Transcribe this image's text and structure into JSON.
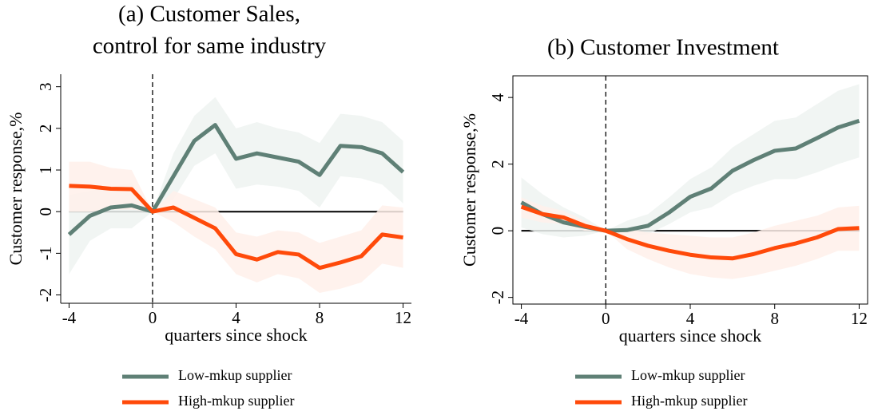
{
  "chart_data": [
    {
      "type": "line",
      "title": [
        "(a) Customer Sales,",
        "control for same industry"
      ],
      "x_label": "quarters since shock",
      "y_label": "Customer response,%",
      "x": [
        -4,
        -3,
        -2,
        -1,
        0,
        1,
        2,
        3,
        4,
        5,
        6,
        7,
        8,
        9,
        10,
        11,
        12
      ],
      "xlim": [
        -4.4,
        12.4
      ],
      "xticks": [
        -4,
        0,
        4,
        8,
        12
      ],
      "ylim": [
        -2.2,
        3.3
      ],
      "yticks": [
        -2,
        -1,
        0,
        1,
        2,
        3
      ],
      "hline": 0,
      "vline": 0,
      "frame": false,
      "series": [
        {
          "name": "Low-mkup supplier",
          "color": "#5f8076",
          "band_color": "#eef3f1",
          "values": [
            -0.55,
            -0.1,
            0.1,
            0.15,
            0,
            0.85,
            1.7,
            2.08,
            1.27,
            1.4,
            1.3,
            1.2,
            0.88,
            1.58,
            1.55,
            1.4,
            0.95
          ],
          "lower": [
            -1.5,
            -0.7,
            -0.4,
            -0.4,
            0,
            0.3,
            1.1,
            1.4,
            0.55,
            0.65,
            0.6,
            0.5,
            0.1,
            0.85,
            0.8,
            0.65,
            0.2
          ],
          "upper": [
            0.4,
            0.5,
            0.6,
            0.7,
            0,
            1.4,
            2.3,
            2.75,
            2.0,
            2.15,
            2.0,
            1.9,
            1.65,
            2.35,
            2.3,
            2.15,
            1.7
          ]
        },
        {
          "name": "High-mkup supplier",
          "color": "#ff4a0a",
          "band_color": "#fff0ea",
          "values": [
            0.62,
            0.6,
            0.55,
            0.54,
            0,
            0.1,
            -0.15,
            -0.4,
            -1.02,
            -1.15,
            -0.97,
            -1.03,
            -1.35,
            -1.22,
            -1.07,
            -0.55,
            -0.62
          ],
          "lower": [
            0.0,
            0.0,
            0.05,
            0.05,
            0,
            -0.25,
            -0.6,
            -0.9,
            -1.5,
            -1.7,
            -1.5,
            -1.6,
            -1.95,
            -1.85,
            -1.7,
            -1.25,
            -1.35
          ],
          "upper": [
            1.2,
            1.2,
            1.05,
            1.0,
            0,
            0.5,
            0.3,
            0.1,
            -0.5,
            -0.6,
            -0.45,
            -0.5,
            -0.75,
            -0.6,
            -0.45,
            0.15,
            0.1
          ]
        }
      ]
    },
    {
      "type": "line",
      "title": [
        "(b) Customer Investment"
      ],
      "x_label": "quarters since shock",
      "y_label": "Customer response,%",
      "x": [
        -4,
        -3,
        -2,
        -1,
        0,
        1,
        2,
        3,
        4,
        5,
        6,
        7,
        8,
        9,
        10,
        11,
        12
      ],
      "xlim": [
        -4.4,
        12.4
      ],
      "xticks": [
        -4,
        0,
        4,
        8,
        12
      ],
      "ylim": [
        -2.2,
        4.65
      ],
      "yticks": [
        -2,
        0,
        2,
        4
      ],
      "hline": 0,
      "vline": 0,
      "frame": true,
      "series": [
        {
          "name": "Low-mkup supplier",
          "color": "#5f8076",
          "band_color": "#eef3f1",
          "values": [
            0.85,
            0.5,
            0.25,
            0.12,
            0,
            0.02,
            0.15,
            0.55,
            1.02,
            1.27,
            1.8,
            2.12,
            2.4,
            2.47,
            2.78,
            3.1,
            3.3
          ],
          "lower": [
            0.1,
            -0.1,
            -0.2,
            -0.15,
            0,
            -0.2,
            -0.1,
            0.2,
            0.55,
            0.7,
            1.1,
            1.35,
            1.55,
            1.55,
            1.75,
            2.0,
            2.2
          ],
          "upper": [
            1.6,
            1.1,
            0.7,
            0.4,
            0,
            0.3,
            0.5,
            1.0,
            1.55,
            1.9,
            2.5,
            2.9,
            3.3,
            3.4,
            3.8,
            4.2,
            4.4
          ]
        },
        {
          "name": "High-mkup supplier",
          "color": "#ff4a0a",
          "band_color": "#fff0ea",
          "values": [
            0.72,
            0.5,
            0.4,
            0.15,
            0,
            -0.25,
            -0.45,
            -0.6,
            -0.72,
            -0.8,
            -0.83,
            -0.7,
            -0.52,
            -0.38,
            -0.2,
            0.05,
            0.08
          ],
          "lower": [
            0.4,
            0.25,
            0.2,
            0.0,
            0,
            -0.55,
            -0.85,
            -1.1,
            -1.3,
            -1.4,
            -1.45,
            -1.35,
            -1.2,
            -1.05,
            -0.85,
            -0.6,
            -0.6
          ],
          "upper": [
            1.0,
            0.75,
            0.6,
            0.3,
            0,
            0.05,
            -0.05,
            -0.1,
            -0.15,
            -0.2,
            -0.2,
            -0.05,
            0.15,
            0.3,
            0.45,
            0.7,
            0.75
          ]
        }
      ]
    }
  ]
}
